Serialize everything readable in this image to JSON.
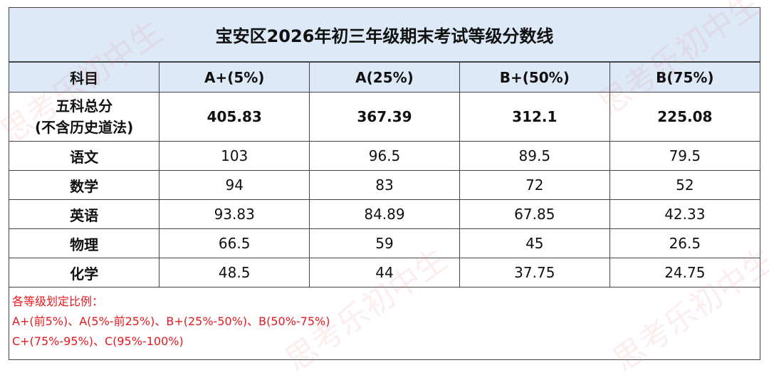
{
  "header": {
    "title": "宝安区2026年初三年级期末考试等级分数线"
  },
  "table": {
    "columns": [
      "科目",
      "A+(5%)",
      "A(25%)",
      "B+(50%)",
      "B(75%)"
    ],
    "rows": [
      [
        "五科总分\n(不含历史道法)",
        "405.83",
        "367.39",
        "312.1",
        "225.08"
      ],
      [
        "语文",
        "103",
        "96.5",
        "89.5",
        "79.5"
      ],
      [
        "数学",
        "94",
        "83",
        "72",
        "52"
      ],
      [
        "英语",
        "93.83",
        "84.89",
        "67.85",
        "42.33"
      ],
      [
        "物理",
        "66.5",
        "59",
        "45",
        "26.5"
      ],
      [
        "化学",
        "48.5",
        "44",
        "37.75",
        "24.75"
      ]
    ]
  },
  "notes": [
    "各等级划定比例：",
    "A+(前5%)、A(5%-前25%)、B+(25%-50%)、B(50%-75%)",
    "C+(75%-95%)、C(95%-100%)"
  ],
  "watermark": "思考乐初中生"
}
